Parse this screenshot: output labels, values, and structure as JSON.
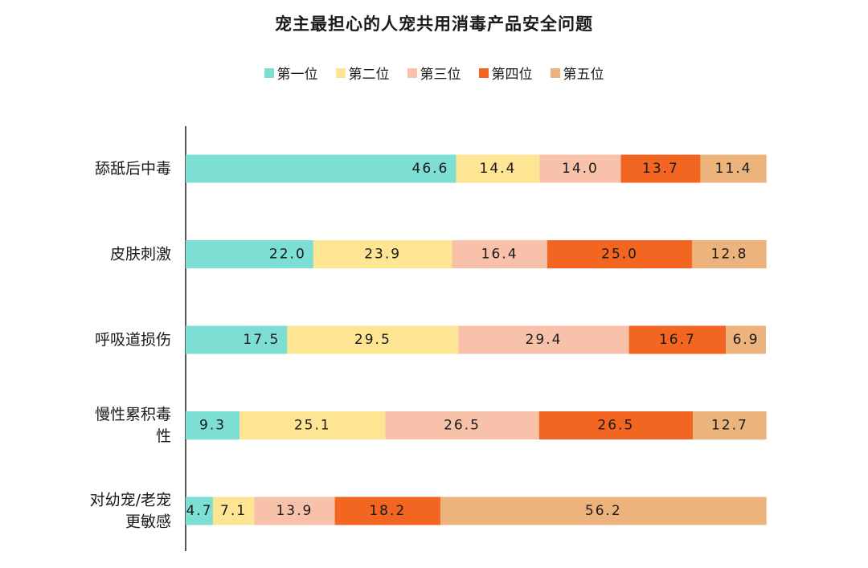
{
  "chart_data": {
    "type": "bar",
    "orientation": "horizontal",
    "stacked": "percent",
    "title": "宠主最担心的人宠共用消毒产品安全问题",
    "categories": [
      [
        "舔舐后中毒"
      ],
      [
        "皮肤刺激"
      ],
      [
        "呼吸道损伤"
      ],
      [
        "慢性累积毒",
        "性"
      ],
      [
        "对幼宠/老宠",
        "更敏感"
      ]
    ],
    "series": [
      {
        "name": "第一位",
        "color": "#7ddfd3",
        "values": [
          46.6,
          22.0,
          17.5,
          9.3,
          4.7
        ],
        "labels": [
          "46.6",
          "22.0",
          "17.5",
          "9.3",
          "4.7"
        ]
      },
      {
        "name": "第二位",
        "color": "#fde594",
        "values": [
          14.4,
          23.9,
          29.5,
          25.1,
          7.1
        ],
        "labels": [
          "14.4",
          "23.9",
          "29.5",
          "25.1",
          "7.1"
        ]
      },
      {
        "name": "第三位",
        "color": "#f8c2aa",
        "values": [
          14.0,
          16.4,
          29.4,
          26.5,
          13.9
        ],
        "labels": [
          "14.0",
          "16.4",
          "29.4",
          "26.5",
          "13.9"
        ]
      },
      {
        "name": "第四位",
        "color": "#f26622",
        "values": [
          13.7,
          25.0,
          16.7,
          26.5,
          18.2
        ],
        "labels": [
          "13.7",
          "25.0",
          "16.7",
          "26.5",
          "18.2"
        ]
      },
      {
        "name": "第五位",
        "color": "#ecb47c",
        "values": [
          11.4,
          12.8,
          6.9,
          12.7,
          56.2
        ],
        "labels": [
          "11.4",
          "12.8",
          "6.9",
          "12.7",
          "56.2"
        ]
      }
    ],
    "xlim": [
      0,
      100
    ],
    "legend_position": "top",
    "grid": false
  }
}
